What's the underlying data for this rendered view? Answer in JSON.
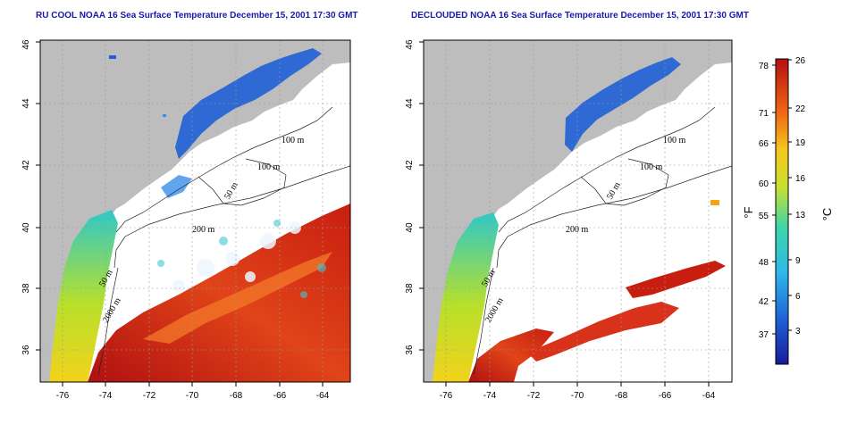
{
  "panels": [
    {
      "title": "RU COOL NOAA 16 Sea Surface Temperature December 15, 2001 17:30 GMT"
    },
    {
      "title": "DECLOUDED NOAA 16 Sea Surface Temperature December 15, 2001 17:30 GMT"
    }
  ],
  "map": {
    "lon_ticks": [
      "-76",
      "-74",
      "-72",
      "-70",
      "-68",
      "-66",
      "-64"
    ],
    "lat_ticks": [
      "36",
      "38",
      "40",
      "42",
      "44",
      "46"
    ],
    "contour_labels": [
      "100 m",
      "100 m",
      "50 m",
      "200 m",
      "50 m",
      "2000 m"
    ]
  },
  "colorbar": {
    "f_ticks": [
      "78",
      "71",
      "66",
      "60",
      "55",
      "48",
      "42",
      "37"
    ],
    "c_ticks": [
      "26",
      "22",
      "19",
      "16",
      "13",
      "9",
      "6",
      "3"
    ],
    "f_label": "°F",
    "c_label": "°C"
  },
  "colors": {
    "land": "#bdbdbd",
    "title": "#1a1aa8",
    "cold": "#1f5fd6",
    "warm": "#c81e10"
  }
}
